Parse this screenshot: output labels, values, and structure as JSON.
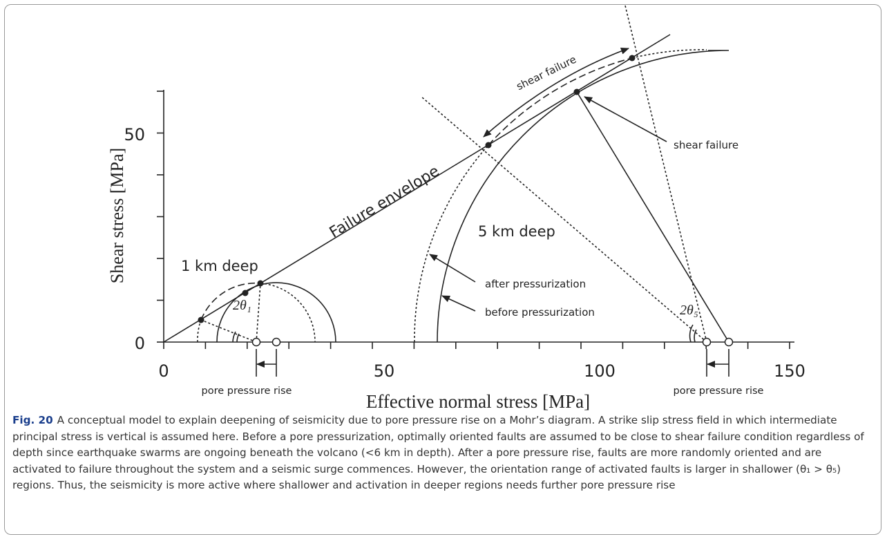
{
  "figure": {
    "y_axis_title": "Shear stress [MPa]",
    "x_axis_title": "Effective normal stress [MPa]",
    "y_tick_labels": [
      0,
      50
    ],
    "x_tick_labels": [
      0,
      50,
      100,
      150
    ],
    "annotations": {
      "failure_envelope": "Failure envelope",
      "shallow": "1 km deep",
      "deep": "5 km deep",
      "angle_shallow": "2θ₁",
      "angle_deep": "2θ₅",
      "shear_failure_top": "shear failure",
      "shear_failure_right": "shear failure",
      "after": "after pressurization",
      "before": "before pressurization",
      "pore_rise_left": "pore pressure rise",
      "pore_rise_right": "pore pressure rise"
    }
  },
  "caption": {
    "label": "Fig. 20",
    "text": "A conceptual model to explain deepening of seismicity due to pore pressure rise on a Mohr’s diagram. A strike slip stress field in which intermediate principal stress is vertical is assumed here. Before a pore pressurization, optimally oriented faults are assumed to be close to shear failure condition regardless of depth since earthquake swarms are ongoing beneath the volcano (<6 km in depth). After a pore pressure rise, faults are more randomly oriented and are activated to failure throughout the system and a seismic surge commences. However, the orientation range of activated faults is larger in shallower (θ₁ > θ₅) regions. Thus, the seismicity is more active where shallower and activation in deeper regions needs further pore pressure rise"
  }
}
